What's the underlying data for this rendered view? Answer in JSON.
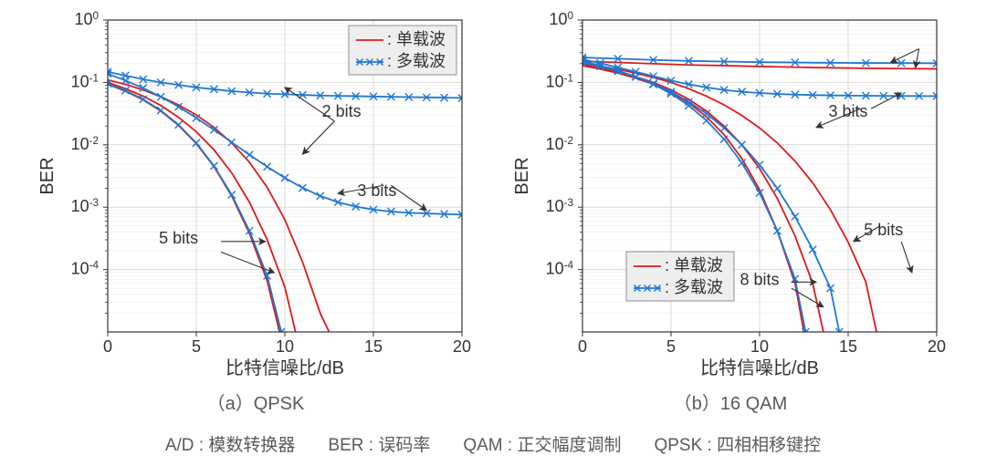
{
  "colors": {
    "bg": "#ffffff",
    "grid": "#d9d9d9",
    "axis": "#333333",
    "text": "#333333",
    "single_carrier": "#e11919",
    "multi_carrier": "#1f77d4",
    "legend_bg": "#eeeeee",
    "legend_border": "#777777",
    "subcap": "#5a5a5a"
  },
  "fontsizes": {
    "tick": 18,
    "axis_label": 20,
    "legend": 18,
    "annotation": 18,
    "subcap": 20,
    "footer": 19
  },
  "legend": {
    "single": ": 单载波",
    "multi": ": 多载波"
  },
  "panels": [
    {
      "id": "a",
      "subcap": "（a）QPSK",
      "xlabel": "比特信噪比/dB",
      "ylabel": "BER",
      "xlim": [
        0,
        20
      ],
      "ylogrange": [
        -5,
        0
      ],
      "xticks": [
        0,
        5,
        10,
        15,
        20
      ],
      "ytick_exp": [
        0,
        -1,
        -2,
        -3,
        -4
      ],
      "legend_pos": "top-right",
      "annotations": [
        {
          "text": "2 bits",
          "x": 13.2,
          "logy": -1.55,
          "arrows": [
            {
              "tx": 12.8,
              "tly": -1.62,
              "hx": 10,
              "hly": -1.08
            },
            {
              "tx": 12.8,
              "tly": -1.62,
              "hx": 11,
              "hly": -2.15
            }
          ]
        },
        {
          "text": "3 bits",
          "x": 15.2,
          "logy": -2.82,
          "arrows": [
            {
              "tx": 16.0,
              "tly": -2.65,
              "hx": 18,
              "hly": -3.05
            },
            {
              "tx": 15.6,
              "tly": -2.65,
              "hx": 13,
              "hly": -2.78
            }
          ]
        },
        {
          "text": "5 bits",
          "x": 4.0,
          "logy": -3.58,
          "arrows": [
            {
              "tx": 6.4,
              "tly": -3.55,
              "hx": 8.9,
              "hly": -3.55
            },
            {
              "tx": 6.4,
              "tly": -3.72,
              "hx": 9.4,
              "hly": -4.05
            }
          ]
        }
      ],
      "series": [
        {
          "kind": "sc",
          "pts": [
            [
              0,
              -0.96
            ],
            [
              1,
              -1.03
            ],
            [
              2,
              -1.12
            ],
            [
              3,
              -1.23
            ],
            [
              4,
              -1.36
            ],
            [
              5,
              -1.52
            ],
            [
              6,
              -1.72
            ],
            [
              7,
              -1.97
            ],
            [
              8,
              -2.28
            ],
            [
              9,
              -2.68
            ],
            [
              10,
              -3.2
            ],
            [
              11,
              -3.88
            ],
            [
              12,
              -4.7
            ],
            [
              12.5,
              -5.0
            ]
          ]
        },
        {
          "kind": "sc",
          "pts": [
            [
              0,
              -1.0
            ],
            [
              1,
              -1.1
            ],
            [
              2,
              -1.22
            ],
            [
              3,
              -1.37
            ],
            [
              4,
              -1.56
            ],
            [
              5,
              -1.79
            ],
            [
              6,
              -2.08
            ],
            [
              7,
              -2.45
            ],
            [
              8,
              -2.92
            ],
            [
              9,
              -3.52
            ],
            [
              10,
              -4.28
            ],
            [
              10.6,
              -5.0
            ]
          ]
        },
        {
          "kind": "sc",
          "pts": [
            [
              0,
              -1.03
            ],
            [
              1,
              -1.14
            ],
            [
              2,
              -1.28
            ],
            [
              3,
              -1.46
            ],
            [
              4,
              -1.69
            ],
            [
              5,
              -1.98
            ],
            [
              6,
              -2.35
            ],
            [
              7,
              -2.82
            ],
            [
              8,
              -3.42
            ],
            [
              9,
              -4.18
            ],
            [
              9.7,
              -5.0
            ]
          ]
        },
        {
          "kind": "mc",
          "pts": [
            [
              0,
              -0.83
            ],
            [
              1,
              -0.89
            ],
            [
              2,
              -0.95
            ],
            [
              3,
              -1.0
            ],
            [
              4,
              -1.04
            ],
            [
              5,
              -1.08
            ],
            [
              6,
              -1.11
            ],
            [
              7,
              -1.14
            ],
            [
              8,
              -1.16
            ],
            [
              9,
              -1.18
            ],
            [
              10,
              -1.19
            ],
            [
              11,
              -1.2
            ],
            [
              12,
              -1.21
            ],
            [
              13,
              -1.215
            ],
            [
              14,
              -1.22
            ],
            [
              15,
              -1.225
            ],
            [
              16,
              -1.23
            ],
            [
              17,
              -1.235
            ],
            [
              18,
              -1.24
            ],
            [
              19,
              -1.245
            ],
            [
              20,
              -1.25
            ]
          ]
        },
        {
          "kind": "mc",
          "pts": [
            [
              0,
              -0.86
            ],
            [
              1,
              -0.97
            ],
            [
              2,
              -1.09
            ],
            [
              3,
              -1.23
            ],
            [
              4,
              -1.39
            ],
            [
              5,
              -1.57
            ],
            [
              6,
              -1.76
            ],
            [
              7,
              -1.96
            ],
            [
              8,
              -2.16
            ],
            [
              9,
              -2.35
            ],
            [
              10,
              -2.53
            ],
            [
              11,
              -2.69
            ],
            [
              12,
              -2.82
            ],
            [
              13,
              -2.92
            ],
            [
              14,
              -2.99
            ],
            [
              15,
              -3.04
            ],
            [
              16,
              -3.07
            ],
            [
              17,
              -3.09
            ],
            [
              18,
              -3.1
            ],
            [
              19,
              -3.11
            ],
            [
              20,
              -3.12
            ]
          ]
        },
        {
          "kind": "mc",
          "pts": [
            [
              0,
              -1.02
            ],
            [
              1,
              -1.13
            ],
            [
              2,
              -1.27
            ],
            [
              3,
              -1.45
            ],
            [
              4,
              -1.68
            ],
            [
              5,
              -1.97
            ],
            [
              6,
              -2.34
            ],
            [
              7,
              -2.8
            ],
            [
              8,
              -3.38
            ],
            [
              9,
              -4.1
            ],
            [
              9.8,
              -5.0
            ]
          ]
        }
      ]
    },
    {
      "id": "b",
      "subcap": "（b）16 QAM",
      "xlabel": "比特信噪比/dB",
      "ylabel": "BER",
      "xlim": [
        0,
        20
      ],
      "ylogrange": [
        -5,
        0
      ],
      "xticks": [
        0,
        5,
        10,
        15,
        20
      ],
      "ytick_exp": [
        0,
        -1,
        -2,
        -3,
        -4
      ],
      "legend_pos": "bottom-left",
      "annotations": [
        {
          "text": "",
          "x": 19.1,
          "logy": -0.38,
          "arrows": [
            {
              "tx": 19.0,
              "tly": -0.46,
              "hx": 17.4,
              "hly": -0.68
            },
            {
              "tx": 19.0,
              "tly": -0.46,
              "hx": 18.8,
              "hly": -0.76
            }
          ]
        },
        {
          "text": "3 bits",
          "x": 15.0,
          "logy": -1.55,
          "arrows": [
            {
              "tx": 16.3,
              "tly": -1.42,
              "hx": 18.0,
              "hly": -1.17
            },
            {
              "tx": 15.7,
              "tly": -1.42,
              "hx": 13.2,
              "hly": -1.72
            }
          ]
        },
        {
          "text": "5 bits",
          "x": 17.0,
          "logy": -3.45,
          "arrows": [
            {
              "tx": 16.8,
              "tly": -3.3,
              "hx": 15.3,
              "hly": -3.55
            },
            {
              "tx": 18.0,
              "tly": -3.55,
              "hx": 18.6,
              "hly": -4.05
            }
          ]
        },
        {
          "text": "8 bits",
          "x": 10.0,
          "logy": -4.25,
          "arrows": [
            {
              "tx": 11.8,
              "tly": -4.2,
              "hx": 13.2,
              "hly": -4.2
            },
            {
              "tx": 11.8,
              "tly": -4.3,
              "hx": 13.6,
              "hly": -4.6
            }
          ]
        }
      ],
      "series": [
        {
          "kind": "sc",
          "pts": [
            [
              0,
              -0.66
            ],
            [
              2,
              -0.68
            ],
            [
              4,
              -0.7
            ],
            [
              6,
              -0.72
            ],
            [
              8,
              -0.73
            ],
            [
              10,
              -0.745
            ],
            [
              12,
              -0.755
            ],
            [
              14,
              -0.765
            ],
            [
              16,
              -0.773
            ],
            [
              18,
              -0.778
            ],
            [
              20,
              -0.782
            ]
          ]
        },
        {
          "kind": "sc",
          "pts": [
            [
              0,
              -0.7
            ],
            [
              1,
              -0.74
            ],
            [
              2,
              -0.79
            ],
            [
              3,
              -0.85
            ],
            [
              4,
              -0.92
            ],
            [
              5,
              -1.0
            ],
            [
              6,
              -1.1
            ],
            [
              7,
              -1.22
            ],
            [
              8,
              -1.36
            ],
            [
              9,
              -1.53
            ],
            [
              10,
              -1.73
            ],
            [
              11,
              -1.97
            ],
            [
              12,
              -2.26
            ],
            [
              13,
              -2.61
            ],
            [
              14,
              -3.04
            ],
            [
              15,
              -3.56
            ],
            [
              16,
              -4.2
            ],
            [
              16.6,
              -5.0
            ]
          ]
        },
        {
          "kind": "sc",
          "pts": [
            [
              0,
              -0.72
            ],
            [
              1,
              -0.77
            ],
            [
              2,
              -0.83
            ],
            [
              3,
              -0.91
            ],
            [
              4,
              -1.0
            ],
            [
              5,
              -1.12
            ],
            [
              6,
              -1.27
            ],
            [
              7,
              -1.46
            ],
            [
              8,
              -1.7
            ],
            [
              9,
              -2.0
            ],
            [
              10,
              -2.38
            ],
            [
              11,
              -2.86
            ],
            [
              12,
              -3.46
            ],
            [
              13,
              -4.22
            ],
            [
              13.6,
              -5.0
            ]
          ]
        },
        {
          "kind": "sc",
          "pts": [
            [
              0,
              -0.73
            ],
            [
              1,
              -0.785
            ],
            [
              2,
              -0.85
            ],
            [
              3,
              -0.93
            ],
            [
              4,
              -1.03
            ],
            [
              5,
              -1.16
            ],
            [
              6,
              -1.33
            ],
            [
              7,
              -1.55
            ],
            [
              8,
              -1.84
            ],
            [
              9,
              -2.22
            ],
            [
              10,
              -2.72
            ],
            [
              11,
              -3.38
            ],
            [
              12,
              -4.22
            ],
            [
              12.5,
              -5.0
            ]
          ]
        },
        {
          "kind": "mc",
          "pts": [
            [
              0,
              -0.6
            ],
            [
              2,
              -0.62
            ],
            [
              4,
              -0.64
            ],
            [
              6,
              -0.655
            ],
            [
              8,
              -0.665
            ],
            [
              10,
              -0.675
            ],
            [
              12,
              -0.68
            ],
            [
              14,
              -0.685
            ],
            [
              16,
              -0.688
            ],
            [
              18,
              -0.69
            ],
            [
              20,
              -0.692
            ]
          ]
        },
        {
          "kind": "mc",
          "pts": [
            [
              0,
              -0.63
            ],
            [
              1,
              -0.69
            ],
            [
              2,
              -0.76
            ],
            [
              3,
              -0.83
            ],
            [
              4,
              -0.9
            ],
            [
              5,
              -0.97
            ],
            [
              6,
              -1.03
            ],
            [
              7,
              -1.08
            ],
            [
              8,
              -1.12
            ],
            [
              9,
              -1.15
            ],
            [
              10,
              -1.17
            ],
            [
              11,
              -1.185
            ],
            [
              12,
              -1.195
            ],
            [
              13,
              -1.202
            ],
            [
              14,
              -1.207
            ],
            [
              15,
              -1.21
            ],
            [
              16,
              -1.213
            ],
            [
              17,
              -1.215
            ],
            [
              18,
              -1.217
            ],
            [
              19,
              -1.218
            ],
            [
              20,
              -1.219
            ]
          ]
        },
        {
          "kind": "mc",
          "pts": [
            [
              0,
              -0.66
            ],
            [
              1,
              -0.73
            ],
            [
              2,
              -0.81
            ],
            [
              3,
              -0.91
            ],
            [
              4,
              -1.03
            ],
            [
              5,
              -1.18
            ],
            [
              6,
              -1.37
            ],
            [
              7,
              -1.61
            ],
            [
              8,
              -1.91
            ],
            [
              9,
              -2.29
            ],
            [
              10,
              -2.77
            ],
            [
              11,
              -3.38
            ],
            [
              12,
              -4.15
            ],
            [
              12.6,
              -5.0
            ]
          ]
        },
        {
          "kind": "mc",
          "pts": [
            [
              0,
              -0.68
            ],
            [
              1,
              -0.74
            ],
            [
              2,
              -0.82
            ],
            [
              3,
              -0.91
            ],
            [
              4,
              -1.02
            ],
            [
              5,
              -1.15
            ],
            [
              6,
              -1.31
            ],
            [
              7,
              -1.5
            ],
            [
              8,
              -1.73
            ],
            [
              9,
              -2.0
            ],
            [
              10,
              -2.32
            ],
            [
              11,
              -2.7
            ],
            [
              12,
              -3.15
            ],
            [
              13,
              -3.68
            ],
            [
              14,
              -4.3
            ],
            [
              14.5,
              -5.0
            ]
          ]
        }
      ]
    }
  ],
  "footer": [
    {
      "k": "A/D",
      "v": "模数转换器"
    },
    {
      "k": "BER",
      "v": "误码率"
    },
    {
      "k": "QAM",
      "v": "正交幅度调制"
    },
    {
      "k": "QPSK",
      "v": "四相相移键控"
    }
  ]
}
